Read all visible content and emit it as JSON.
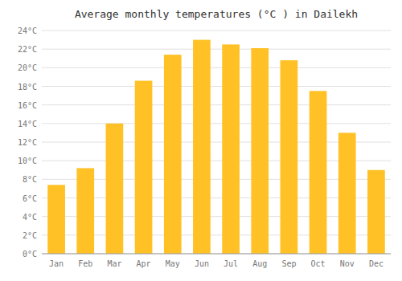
{
  "chart_data": {
    "type": "bar",
    "title": "Average monthly temperatures (°C ) in Dailekh",
    "categories": [
      "Jan",
      "Feb",
      "Mar",
      "Apr",
      "May",
      "Jun",
      "Jul",
      "Aug",
      "Sep",
      "Oct",
      "Nov",
      "Dec"
    ],
    "values": [
      7.4,
      9.2,
      14.0,
      18.6,
      21.4,
      23.0,
      22.5,
      22.1,
      20.8,
      17.5,
      13.0,
      9.0
    ],
    "color": "#FFC125",
    "ylim": [
      0,
      24
    ],
    "yticks": [
      {
        "value": 0,
        "label": "0°C"
      },
      {
        "value": 2,
        "label": "2°C"
      },
      {
        "value": 4,
        "label": "4°C"
      },
      {
        "value": 6,
        "label": "6°C"
      },
      {
        "value": 8,
        "label": "8°C"
      },
      {
        "value": 10,
        "label": "10°C"
      },
      {
        "value": 12,
        "label": "12°C"
      },
      {
        "value": 14,
        "label": "14°C"
      },
      {
        "value": 16,
        "label": "16°C"
      },
      {
        "value": 18,
        "label": "18°C"
      },
      {
        "value": 20,
        "label": "20°C"
      },
      {
        "value": 22,
        "label": "22°C"
      },
      {
        "value": 24,
        "label": "24°C"
      }
    ],
    "grid": true
  }
}
